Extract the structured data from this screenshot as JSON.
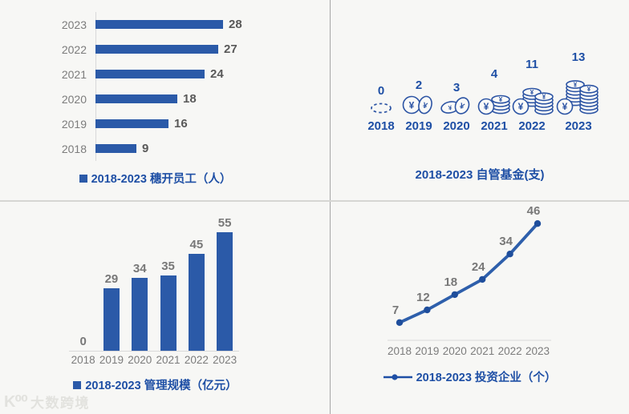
{
  "watermark": {
    "logo_glyph": "K⁰⁰",
    "brand": "大数跨境"
  },
  "colors": {
    "background": "#F7F7F5",
    "bar_blue": "#2B5AA8",
    "text_blue": "#1E4FA5",
    "coin_outline_blue": "#2C54A4",
    "line_blue": "#2E5FAB",
    "dot_blue": "#1F4E9C",
    "value_gray_dark": "#595959",
    "value_gray": "#787878",
    "axis_label_gray": "#7C7C7C",
    "axis_line_gray": "#D9D9D9",
    "divider_vertical": "#A6A6A6",
    "divider_horizontal": "#D6D6D3"
  },
  "chart_data": [
    {
      "id": "staff",
      "type": "bar",
      "orientation": "horizontal",
      "legend_label": "2018-2023 穗开员工（人）",
      "legend_position": "bottom",
      "categories": [
        "2023",
        "2022",
        "2021",
        "2020",
        "2019",
        "2018"
      ],
      "values": [
        28,
        27,
        24,
        18,
        16,
        9
      ],
      "xlim": [
        0,
        30
      ],
      "grid": false
    },
    {
      "id": "funds",
      "type": "pictograph",
      "title": "2018-2023 自管基金(支)",
      "categories": [
        "2018",
        "2019",
        "2020",
        "2021",
        "2022",
        "2023"
      ],
      "values": [
        0,
        2,
        3,
        4,
        11,
        13
      ],
      "icons": [
        "coin-dashed-empty",
        "coin-pair",
        "coin-pair-tilted",
        "coin-stack-small",
        "coin-stack-medium",
        "coin-stack-large"
      ]
    },
    {
      "id": "aum",
      "type": "bar",
      "orientation": "vertical",
      "legend_label": "2018-2023 管理规模（亿元）",
      "legend_position": "bottom",
      "categories": [
        "2018",
        "2019",
        "2020",
        "2021",
        "2022",
        "2023"
      ],
      "values": [
        0,
        29,
        34,
        35,
        45,
        55
      ],
      "ylim": [
        0,
        60
      ],
      "grid": false
    },
    {
      "id": "portfolio",
      "type": "line",
      "legend_label": "2018-2023 投资企业（个）",
      "legend_position": "bottom",
      "categories": [
        "2018",
        "2019",
        "2020",
        "2021",
        "2022",
        "2023"
      ],
      "values": [
        7,
        12,
        18,
        24,
        34,
        46
      ],
      "ylim": [
        0,
        50
      ],
      "grid": false
    }
  ]
}
